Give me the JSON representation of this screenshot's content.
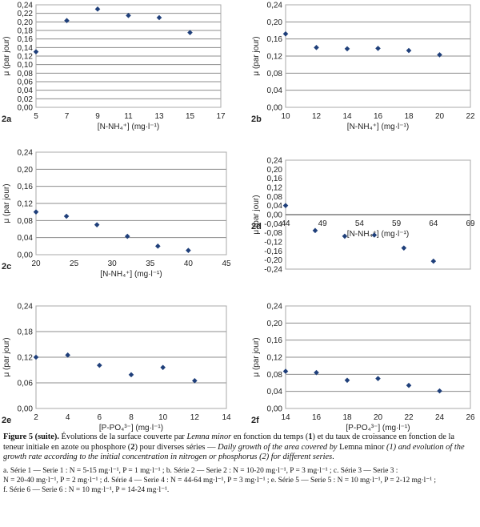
{
  "colors": {
    "point": "#1f3f7a",
    "grid": "#8c8c8c",
    "frame": "#a8a8a8",
    "zero_line": "#3a3a3a"
  },
  "chart_data": [
    {
      "panel": "2a",
      "type": "scatter",
      "x": [
        5,
        7,
        9,
        11,
        13,
        15
      ],
      "y": [
        0.13,
        0.203,
        0.23,
        0.215,
        0.21,
        0.175
      ],
      "xlim": [
        5,
        17
      ],
      "xticks": [
        "5",
        "7",
        "9",
        "11",
        "13",
        "15",
        "17"
      ],
      "ylim": [
        0,
        0.24
      ],
      "yticks": [
        "0,00",
        "0,02",
        "0,04",
        "0,06",
        "0,08",
        "0,10",
        "0,12",
        "0,14",
        "0,16",
        "0,18",
        "0,20",
        "0,22",
        "0,24"
      ],
      "xlabel": "[N-NH₄⁺] (mg·l⁻¹)",
      "ylabel": "μ (par jour)",
      "grid": "horizontal"
    },
    {
      "panel": "2b",
      "type": "scatter",
      "x": [
        10,
        12,
        14,
        16,
        18,
        20
      ],
      "y": [
        0.172,
        0.14,
        0.137,
        0.138,
        0.133,
        0.123
      ],
      "xlim": [
        10,
        22
      ],
      "xticks": [
        "10",
        "12",
        "14",
        "16",
        "18",
        "20",
        "22"
      ],
      "ylim": [
        0,
        0.24
      ],
      "yticks": [
        "0,00",
        "0,04",
        "0,08",
        "0,12",
        "0,16",
        "0,20",
        "0,24"
      ],
      "xlabel": "[N-NH₄⁺] (mg·l⁻¹)",
      "ylabel": "μ (par jour)",
      "grid": "horizontal"
    },
    {
      "panel": "2c",
      "type": "scatter",
      "x": [
        20,
        24,
        28,
        32,
        36,
        40
      ],
      "y": [
        0.1,
        0.09,
        0.07,
        0.043,
        0.02,
        0.01
      ],
      "xlim": [
        20,
        45
      ],
      "xticks": [
        "20",
        "25",
        "30",
        "35",
        "40",
        "45"
      ],
      "ylim": [
        0,
        0.24
      ],
      "yticks": [
        "0,00",
        "0,04",
        "0,08",
        "0,12",
        "0,16",
        "0,20",
        "0,24"
      ],
      "xlabel": "[N-NH₄⁺] (mg·l⁻¹)",
      "ylabel": "μ (par jour)",
      "grid": "horizontal"
    },
    {
      "panel": "2d",
      "type": "scatter",
      "x": [
        44,
        48,
        52,
        56,
        60,
        64
      ],
      "y": [
        0.04,
        -0.07,
        -0.095,
        -0.09,
        -0.147,
        -0.205
      ],
      "xlim": [
        44,
        69
      ],
      "xticks": [
        "44",
        "49",
        "54",
        "59",
        "64",
        "69"
      ],
      "ylim": [
        -0.24,
        0.24
      ],
      "yticks": [
        "-0,24",
        "-0,20",
        "-0,16",
        "-0,12",
        "-0,08",
        "-0,04",
        "0,00",
        "0,04",
        "0,08",
        "0,12",
        "0,16",
        "0,20",
        "0,24"
      ],
      "xlabel": "[N-NH₄⁺] (mg·l⁻¹)",
      "ylabel": "μ (par jour)",
      "grid": "none"
    },
    {
      "panel": "2e",
      "type": "scatter",
      "x": [
        2,
        4,
        6,
        8,
        10,
        12
      ],
      "y": [
        0.12,
        0.125,
        0.101,
        0.079,
        0.096,
        0.065
      ],
      "xlim": [
        2,
        14
      ],
      "xticks": [
        "2",
        "4",
        "6",
        "8",
        "10",
        "12",
        "14"
      ],
      "ylim": [
        0,
        0.24
      ],
      "yticks": [
        "0,00",
        "0,06",
        "0,12",
        "0,18",
        "0,24"
      ],
      "xlabel": "[P-PO₄³⁻] (mg·l⁻¹)",
      "ylabel": "μ (par jour)",
      "grid": "horizontal"
    },
    {
      "panel": "2f",
      "type": "scatter",
      "x": [
        14,
        16,
        18,
        20,
        22,
        24
      ],
      "y": [
        0.087,
        0.084,
        0.066,
        0.07,
        0.054,
        0.041
      ],
      "xlim": [
        14,
        26
      ],
      "xticks": [
        "14",
        "16",
        "18",
        "20",
        "22",
        "24",
        "26"
      ],
      "ylim": [
        0,
        0.24
      ],
      "yticks": [
        "0,00",
        "0,04",
        "0,08",
        "0,12",
        "0,16",
        "0,20",
        "0,24"
      ],
      "xlabel": "[P-PO₄³⁻] (mg·l⁻¹)",
      "ylabel": "μ (par jour)",
      "grid": "horizontal"
    }
  ],
  "caption": {
    "lead": "Figure 5 (suite).",
    "part1": " Évolutions de la surface couverte par ",
    "species": "Lemna minor",
    "part2": " en fonction du temps (",
    "n1": "1",
    "part3": ") et du taux de croissance en fonction de la teneur initiale en azote ou phosphore (",
    "n2": "2",
    "part4": ") pour diverses séries — ",
    "en1": "Daily growth of the area covered by",
    "species2": " Lemna minor ",
    "en2": "(1) and evolution of the growth rate according to the initial concentration in nitrogen or phosphorus (2) for different series",
    "end": "."
  },
  "notes": [
    "a. Série 1 — Serie 1 : N = 5-15 mg·l⁻¹, P = 1 mg·l⁻¹ ; b. Série 2 — Serie 2 : N = 10-20 mg·l⁻¹, P = 3 mg·l⁻¹ ; c. Série 3 — Serie 3 :",
    "N = 20-40 mg·l⁻¹, P = 2 mg·l⁻¹ ; d. Série 4 — Serie 4 : N = 44-64 mg·l⁻¹, P = 3 mg·l⁻¹ ; e. Série 5 — Serie 5 : N = 10 mg·l⁻¹, P = 2-12 mg·l⁻¹ ;",
    "f. Série 6 — Serie 6 : N = 10 mg·l⁻¹, P = 14-24 mg·l⁻¹."
  ]
}
